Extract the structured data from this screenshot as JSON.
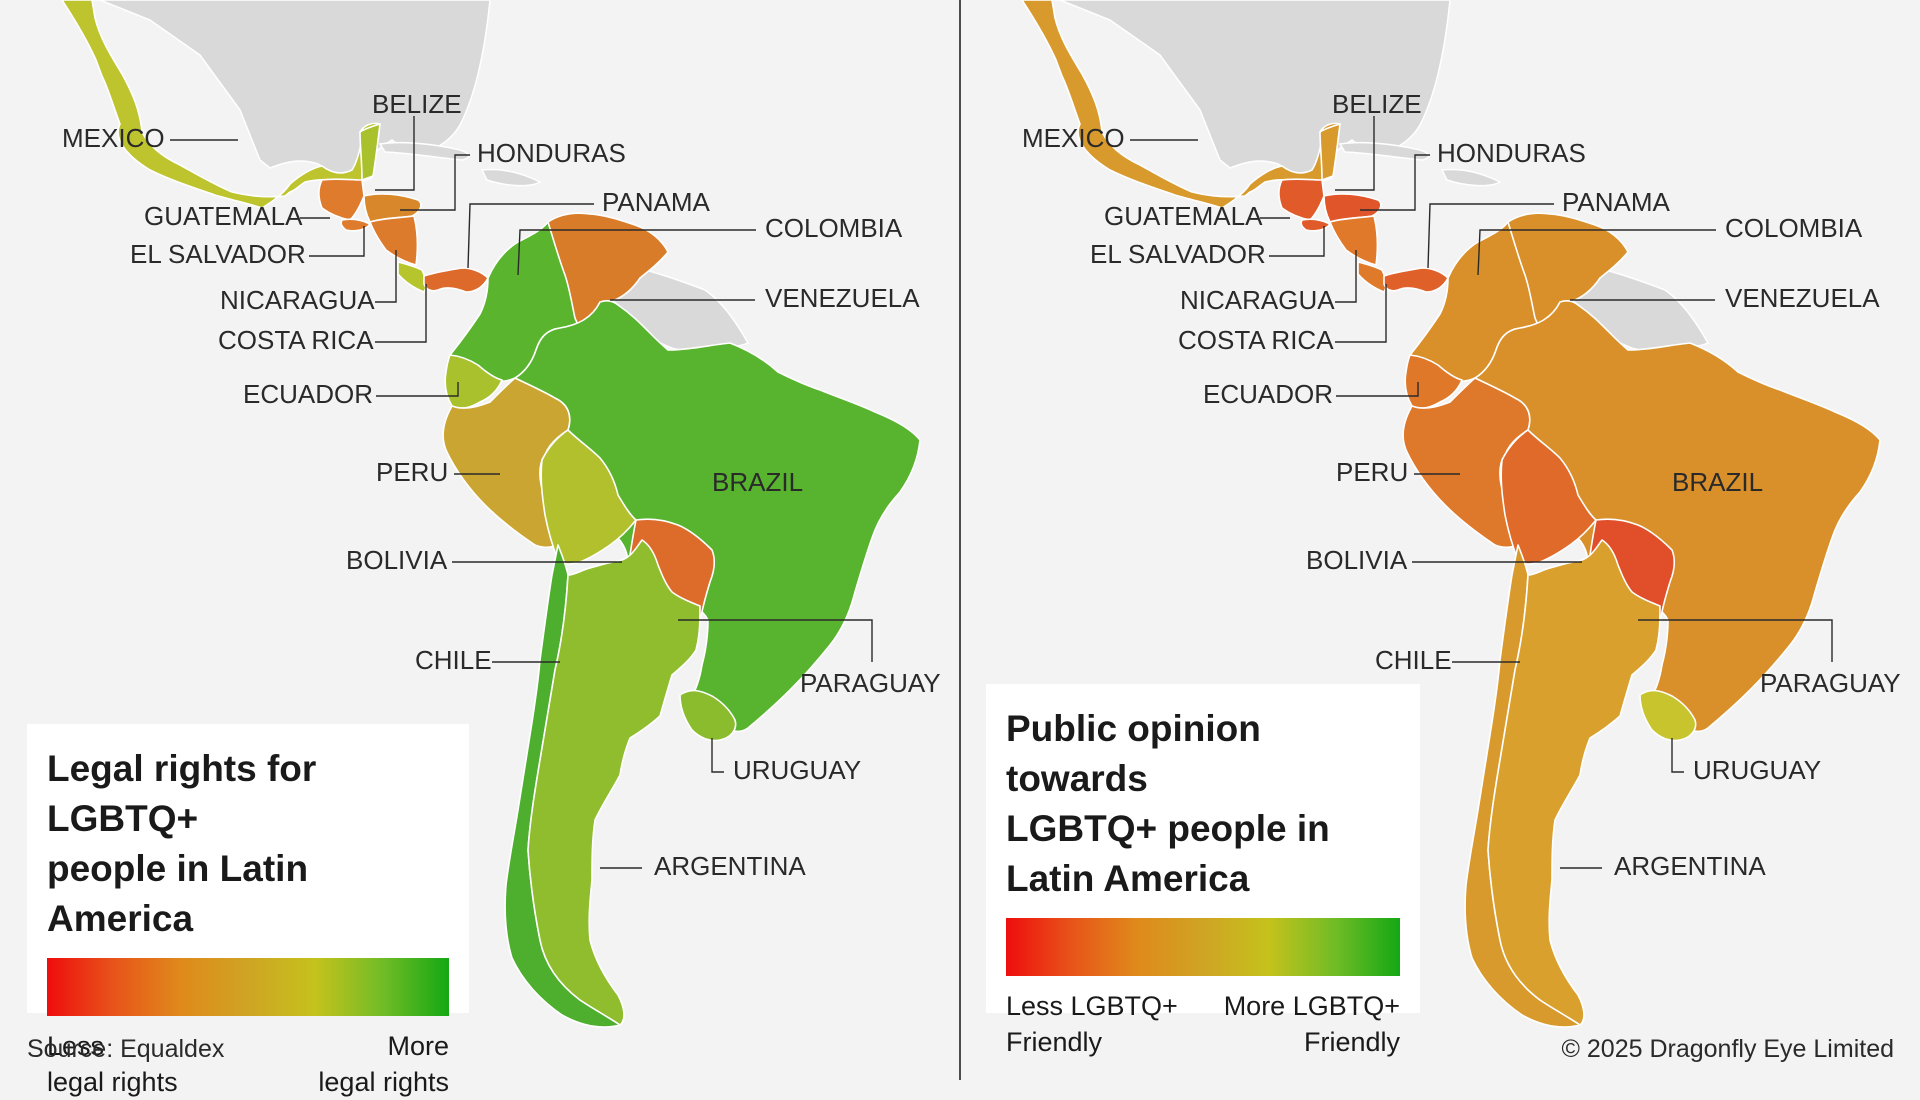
{
  "source": "Source: Equaldex",
  "copyright": "© 2025 Dragonfly Eye Limited",
  "colors": {
    "background": "#f3f3f3",
    "land_other": "#d9d9d9",
    "water": "#f3f3f3",
    "leader_line": "#2a2a2a",
    "divider": "#4d4d4d"
  },
  "scale": [
    "#ee0d0d",
    "#e8541a",
    "#df8a1b",
    "#cfa424",
    "#c5c21c",
    "#72bc26",
    "#14a814"
  ],
  "maps": [
    {
      "id": "legal",
      "title": "Legal rights for LGBTQ+\npeople in Latin America",
      "legend_low": "Less\nlegal rights",
      "legend_high": "More\nlegal rights",
      "country_fills": {
        "mexico": "#bdc42e",
        "belize": "#a8c12d",
        "guatemala": "#df7b2c",
        "honduras": "#d9872b",
        "el_salvador": "#df7b2c",
        "nicaragua": "#dd7b2c",
        "costa_rica": "#b7c52c",
        "panama": "#dd6a2a",
        "colombia": "#5bb42e",
        "venezuela": "#d97c2a",
        "ecuador": "#a8c12d",
        "peru": "#cba531",
        "bolivia": "#b2c02e",
        "brazil": "#58b32f",
        "paraguay": "#dd6b2a",
        "chile": "#4eaf2f",
        "argentina": "#8fbd2d",
        "uruguay": "#8bbc2d"
      }
    },
    {
      "id": "opinion",
      "title": "Public opinion towards\nLGBTQ+ people in\nLatin America",
      "legend_low": "Less LGBTQ+\nFriendly",
      "legend_high": "More LGBTQ+\nFriendly",
      "country_fills": {
        "mexico": "#d99a2d",
        "belize": "#d99a2d",
        "guatemala": "#e05a2a",
        "honduras": "#e0552a",
        "el_salvador": "#e05a2a",
        "nicaragua": "#e07a2a",
        "costa_rica": "#de7a2a",
        "panama": "#e0602a",
        "colombia": "#d98f2a",
        "venezuela": "#d98f2a",
        "ecuador": "#e0782a",
        "peru": "#de782a",
        "bolivia": "#e06a2a",
        "brazil": "#d9902a",
        "paraguay": "#e14f2a",
        "chile": "#d99a2d",
        "argentina": "#d9a02d",
        "uruguay": "#c7c42e"
      }
    }
  ],
  "labels": [
    {
      "id": "mexico",
      "text": "MEXICO"
    },
    {
      "id": "belize",
      "text": "BELIZE"
    },
    {
      "id": "honduras",
      "text": "HONDURAS"
    },
    {
      "id": "guatemala",
      "text": "GUATEMALA"
    },
    {
      "id": "panama",
      "text": "PANAMA"
    },
    {
      "id": "colombia",
      "text": "COLOMBIA"
    },
    {
      "id": "el_salvador",
      "text": "EL SALVADOR"
    },
    {
      "id": "nicaragua",
      "text": "NICARAGUA"
    },
    {
      "id": "venezuela",
      "text": "VENEZUELA"
    },
    {
      "id": "costa_rica",
      "text": "COSTA RICA"
    },
    {
      "id": "ecuador",
      "text": "ECUADOR"
    },
    {
      "id": "peru",
      "text": "PERU"
    },
    {
      "id": "brazil",
      "text": "BRAZIL"
    },
    {
      "id": "bolivia",
      "text": "BOLIVIA"
    },
    {
      "id": "chile",
      "text": "CHILE"
    },
    {
      "id": "paraguay",
      "text": "PARAGUAY"
    },
    {
      "id": "uruguay",
      "text": "URUGUAY"
    },
    {
      "id": "argentina",
      "text": "ARGENTINA"
    }
  ]
}
